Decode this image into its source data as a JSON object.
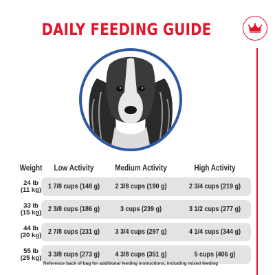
{
  "title": "DAILY FEEDING GUIDE",
  "brand_color": "#e3142b",
  "portrait": {
    "icon": "spaniel-dog-portrait",
    "ring_color": "#2f59a6"
  },
  "logo": {
    "icon": "crown-icon"
  },
  "table": {
    "headers": [
      "Weight",
      "Low Activity",
      "Medium Activity",
      "High Activity"
    ],
    "rows": [
      {
        "weight_lb": "24 lb",
        "weight_kg": "(11 kg)",
        "low": "1 7/8 cups (148 g)",
        "medium": "2 3/8 cups (190 g)",
        "high": "2 3/4 cups (219 g)"
      },
      {
        "weight_lb": "33 lb",
        "weight_kg": "(15 kg)",
        "low": "2 3/8 cups (186 g)",
        "medium": "3 cups (239 g)",
        "high": "3 1/2 cups (277 g)"
      },
      {
        "weight_lb": "44 lb",
        "weight_kg": "(20 kg)",
        "low": "2 7/8 cups (231 g)",
        "medium": "3 3/4 cups (297 g)",
        "high": "4 1/4 cups (344 g)"
      },
      {
        "weight_lb": "55 lb",
        "weight_kg": "(25 kg)",
        "low": "3 3/8 cups (273 g)",
        "medium": "4 3/8 cups (351 g)",
        "high": "5 cups (406 g)"
      }
    ]
  },
  "footnote": "Reference back of bag for additional feeding instructions, including mixed feeding"
}
